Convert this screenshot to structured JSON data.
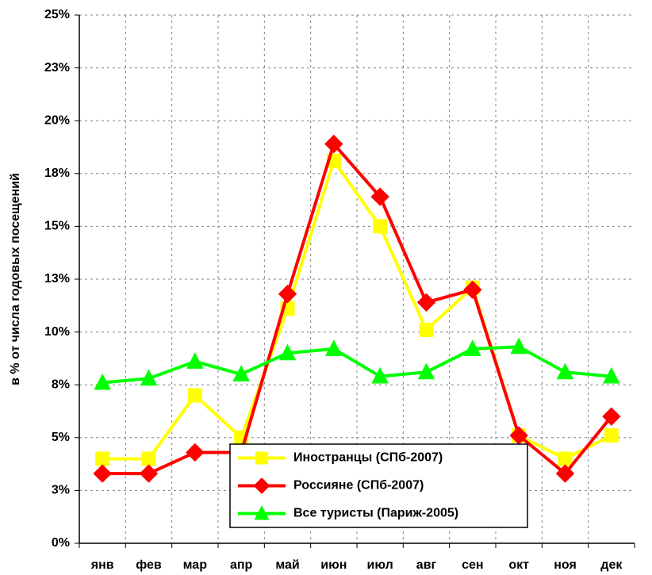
{
  "chart_data": {
    "type": "line",
    "y_label": "в % от числа годовых посещений",
    "categories": [
      "янв",
      "фев",
      "мар",
      "апр",
      "май",
      "июн",
      "июл",
      "авг",
      "сен",
      "окт",
      "ноя",
      "дек"
    ],
    "series": [
      {
        "name": "Иностранцы (СПб-2007)",
        "color": "#ffff00",
        "marker": "square",
        "values": [
          4.0,
          4.0,
          7.0,
          5.0,
          11.1,
          18.1,
          15.0,
          10.1,
          12.1,
          5.1,
          4.0,
          5.1
        ]
      },
      {
        "name": "Россияне (СПб-2007)",
        "color": "#ff0000",
        "marker": "diamond",
        "values": [
          3.3,
          3.3,
          4.3,
          4.3,
          11.8,
          18.9,
          16.4,
          11.4,
          12.0,
          5.1,
          3.3,
          6.0
        ]
      },
      {
        "name": "Все туристы (Париж-2005)",
        "color": "#00ff00",
        "marker": "triangle",
        "values": [
          7.6,
          7.8,
          8.6,
          8.0,
          9.0,
          9.2,
          7.9,
          8.1,
          9.2,
          9.3,
          8.1,
          7.9
        ]
      }
    ],
    "ylim": [
      0,
      25
    ],
    "yticks": [
      {
        "value": 0,
        "label": "0%"
      },
      {
        "value": 2.5,
        "label": "3%"
      },
      {
        "value": 5,
        "label": "5%"
      },
      {
        "value": 7.5,
        "label": "8%"
      },
      {
        "value": 10,
        "label": "10%"
      },
      {
        "value": 12.5,
        "label": "13%"
      },
      {
        "value": 15,
        "label": "15%"
      },
      {
        "value": 17.5,
        "label": "18%"
      },
      {
        "value": 20,
        "label": "20%"
      },
      {
        "value": 22.5,
        "label": "23%"
      },
      {
        "value": 25,
        "label": "25%"
      }
    ],
    "grid": true
  }
}
